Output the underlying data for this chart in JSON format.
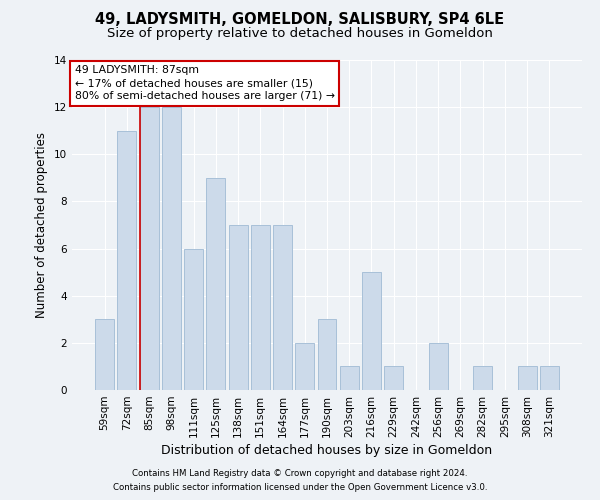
{
  "title": "49, LADYSMITH, GOMELDON, SALISBURY, SP4 6LE",
  "subtitle": "Size of property relative to detached houses in Gomeldon",
  "xlabel": "Distribution of detached houses by size in Gomeldon",
  "ylabel": "Number of detached properties",
  "categories": [
    "59sqm",
    "72sqm",
    "85sqm",
    "98sqm",
    "111sqm",
    "125sqm",
    "138sqm",
    "151sqm",
    "164sqm",
    "177sqm",
    "190sqm",
    "203sqm",
    "216sqm",
    "229sqm",
    "242sqm",
    "256sqm",
    "269sqm",
    "282sqm",
    "295sqm",
    "308sqm",
    "321sqm"
  ],
  "values": [
    3,
    11,
    12,
    12,
    6,
    9,
    7,
    7,
    7,
    2,
    3,
    1,
    5,
    1,
    0,
    2,
    0,
    1,
    0,
    1,
    1
  ],
  "bar_color": "#ccdaea",
  "bar_edge_color": "#a8c0d8",
  "highlight_line_index": 2,
  "highlight_color": "#cc0000",
  "ylim": [
    0,
    14
  ],
  "yticks": [
    0,
    2,
    4,
    6,
    8,
    10,
    12,
    14
  ],
  "annotation_line1": "49 LADYSMITH: 87sqm",
  "annotation_line2": "← 17% of detached houses are smaller (15)",
  "annotation_line3": "80% of semi-detached houses are larger (71) →",
  "footnote1": "Contains HM Land Registry data © Crown copyright and database right 2024.",
  "footnote2": "Contains public sector information licensed under the Open Government Licence v3.0.",
  "bg_color": "#eef2f6",
  "plot_bg_color": "#eef2f6",
  "grid_color": "#ffffff",
  "title_fontsize": 10.5,
  "subtitle_fontsize": 9.5,
  "tick_fontsize": 7.5,
  "ylabel_fontsize": 8.5,
  "xlabel_fontsize": 9,
  "annotation_fontsize": 7.8,
  "footnote_fontsize": 6.2
}
